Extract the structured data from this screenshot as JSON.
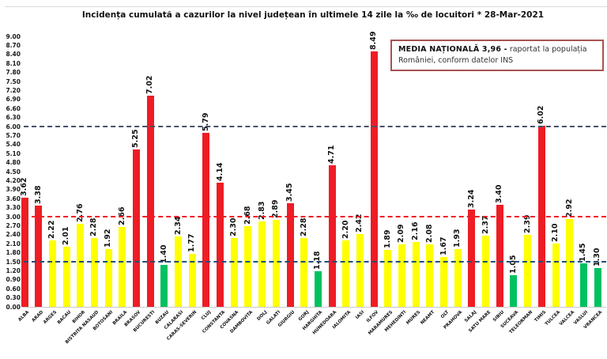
{
  "title": "Incidența cumulată a cazurilor la nivel județean în ultimele 14 zile la ‰ de locuitori * 28-Mar-2021",
  "legend": {
    "title": "MEDIA NAȚIONALĂ  3,96 -",
    "text": "raportat la populația României, conform datelor INS"
  },
  "chart_data": {
    "type": "bar",
    "title": "Incidența cumulată a cazurilor la nivel județean în ultimele 14 zile la ‰ de locuitori * 28-Mar-2021",
    "xlabel": "",
    "ylabel": "",
    "ylim": [
      0,
      9.0
    ],
    "y_tick_step": 0.3,
    "grid": false,
    "national_average": 3.96,
    "y_ticks": [
      "9.00",
      "8.70",
      "8.40",
      "8.10",
      "7.80",
      "7.50",
      "7.20",
      "6.90",
      "6.60",
      "6.30",
      "6.00",
      "5.70",
      "5.40",
      "5.10",
      "4.80",
      "4.50",
      "4.20",
      "3.90",
      "3.60",
      "3.30",
      "3.00",
      "2.70",
      "2.40",
      "2.10",
      "1.80",
      "1.50",
      "1.20",
      "0.90",
      "0.60",
      "0.30",
      "0.00"
    ],
    "reference_lines": [
      {
        "value": 6.0,
        "color": "#44546a"
      },
      {
        "value": 3.0,
        "color": "#ee1c25"
      },
      {
        "value": 1.5,
        "color": "#1f4e79"
      }
    ],
    "zone_colors": {
      "red": "#ee1c25",
      "yellow": "#ffff00",
      "green": "#00c160"
    },
    "counties": [
      {
        "name": "ALBA",
        "value": 3.62,
        "zone": "red"
      },
      {
        "name": "ARAD",
        "value": 3.38,
        "zone": "red"
      },
      {
        "name": "ARGES",
        "value": 2.22,
        "zone": "yellow"
      },
      {
        "name": "BACAU",
        "value": 2.01,
        "zone": "yellow"
      },
      {
        "name": "BIHOR",
        "value": 2.76,
        "zone": "yellow"
      },
      {
        "name": "BISTRITA NASAUD",
        "value": 2.28,
        "zone": "yellow"
      },
      {
        "name": "BOTOSANI",
        "value": 1.92,
        "zone": "yellow"
      },
      {
        "name": "BRAILA",
        "value": 2.66,
        "zone": "yellow"
      },
      {
        "name": "BRASOV",
        "value": 5.25,
        "zone": "red"
      },
      {
        "name": "BUCURESTI",
        "value": 7.02,
        "zone": "red"
      },
      {
        "name": "BUZAU",
        "value": 1.4,
        "zone": "green"
      },
      {
        "name": "CALARASI",
        "value": 2.34,
        "zone": "yellow"
      },
      {
        "name": "CARAS-SEVERIN",
        "value": 1.77,
        "zone": "yellow"
      },
      {
        "name": "CLUJ",
        "value": 5.79,
        "zone": "red"
      },
      {
        "name": "CONSTANTA",
        "value": 4.14,
        "zone": "red"
      },
      {
        "name": "COVASNA",
        "value": 2.3,
        "zone": "yellow"
      },
      {
        "name": "DAMBOVITA",
        "value": 2.68,
        "zone": "yellow"
      },
      {
        "name": "DOLJ",
        "value": 2.83,
        "zone": "yellow"
      },
      {
        "name": "GALATI",
        "value": 2.89,
        "zone": "yellow"
      },
      {
        "name": "GIURGIU",
        "value": 3.45,
        "zone": "red"
      },
      {
        "name": "GORJ",
        "value": 2.28,
        "zone": "yellow"
      },
      {
        "name": "HARGHITA",
        "value": 1.18,
        "zone": "green"
      },
      {
        "name": "HUNEDOARA",
        "value": 4.71,
        "zone": "red"
      },
      {
        "name": "IALOMITA",
        "value": 2.2,
        "zone": "yellow"
      },
      {
        "name": "IASI",
        "value": 2.42,
        "zone": "yellow"
      },
      {
        "name": "ILFOV",
        "value": 8.49,
        "zone": "red"
      },
      {
        "name": "MARAMURES",
        "value": 1.89,
        "zone": "yellow"
      },
      {
        "name": "MEHEDINTI",
        "value": 2.09,
        "zone": "yellow"
      },
      {
        "name": "MURES",
        "value": 2.16,
        "zone": "yellow"
      },
      {
        "name": "NEAMT",
        "value": 2.08,
        "zone": "yellow"
      },
      {
        "name": "OLT",
        "value": 1.67,
        "zone": "yellow"
      },
      {
        "name": "PRAHOVA",
        "value": 1.93,
        "zone": "yellow"
      },
      {
        "name": "SALAJ",
        "value": 3.24,
        "zone": "red"
      },
      {
        "name": "SATU MARE",
        "value": 2.37,
        "zone": "yellow"
      },
      {
        "name": "SIBIU",
        "value": 3.4,
        "zone": "red"
      },
      {
        "name": "SUCEAVA",
        "value": 1.05,
        "zone": "green"
      },
      {
        "name": "TELEORMAN",
        "value": 2.39,
        "zone": "yellow"
      },
      {
        "name": "TIMIS",
        "value": 6.02,
        "zone": "red"
      },
      {
        "name": "TULCEA",
        "value": 2.1,
        "zone": "yellow"
      },
      {
        "name": "VALCEA",
        "value": 2.92,
        "zone": "yellow"
      },
      {
        "name": "VASLUI",
        "value": 1.45,
        "zone": "green"
      },
      {
        "name": "VRANCEA",
        "value": 1.3,
        "zone": "green"
      }
    ]
  }
}
